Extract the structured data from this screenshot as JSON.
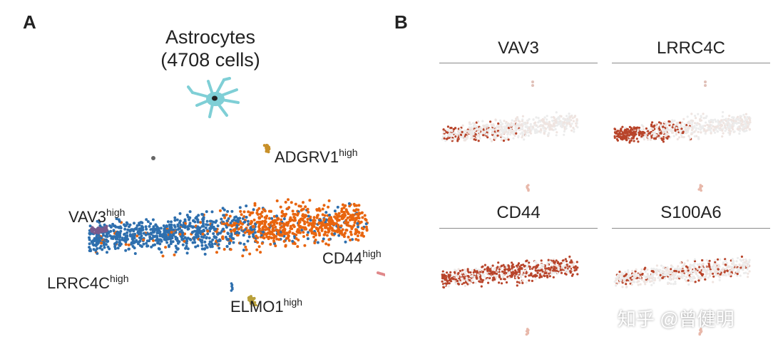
{
  "panel_a": {
    "letter": "A",
    "title_line1": "Astrocytes",
    "title_line2": "(4708 cells)",
    "icon": "astrocyte-icon",
    "clusters": [
      {
        "name": "VAV3",
        "sup": "high",
        "color": "#7a5a8c"
      },
      {
        "name": "LRRC4C",
        "sup": "high",
        "color": "#2e6fae"
      },
      {
        "name": "ADGRV1",
        "sup": "high",
        "color": "#c8902a"
      },
      {
        "name": "CD44",
        "sup": "high",
        "color": "#e8650f"
      },
      {
        "name": "ELMO1",
        "sup": "high",
        "color": "#b9a03a"
      }
    ]
  },
  "panel_b": {
    "letter": "B",
    "genes": [
      "VAV3",
      "LRRC4C",
      "CD44",
      "S100A6"
    ],
    "color_high": "#b8442a",
    "color_low": "#eeeeee"
  },
  "watermark": "知乎 @曾健明"
}
